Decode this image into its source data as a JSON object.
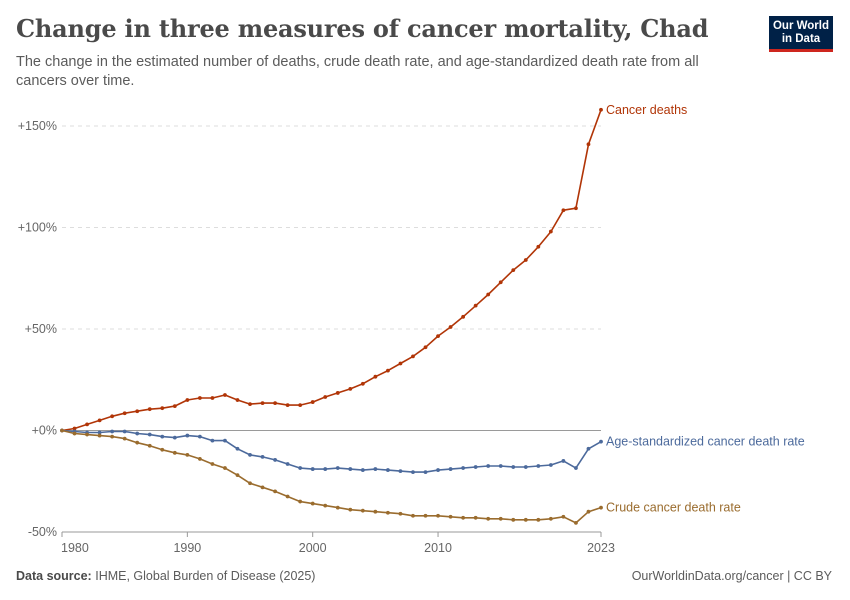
{
  "header": {
    "title": "Change in three measures of cancer mortality, Chad",
    "subtitle": "The change in the estimated number of deaths, crude death rate, and age-standardized death rate from all cancers over time."
  },
  "logo": {
    "line1": "Our World",
    "line2": "in Data"
  },
  "footer": {
    "source_label": "Data source:",
    "source_text": "IHME, Global Burden of Disease (2025)",
    "credit": "OurWorldinData.org/cancer | CC BY"
  },
  "chart_data": {
    "type": "line",
    "x": [
      1980,
      1981,
      1982,
      1983,
      1984,
      1985,
      1986,
      1987,
      1988,
      1989,
      1990,
      1991,
      1992,
      1993,
      1994,
      1995,
      1996,
      1997,
      1998,
      1999,
      2000,
      2001,
      2002,
      2003,
      2004,
      2005,
      2006,
      2007,
      2008,
      2009,
      2010,
      2011,
      2012,
      2013,
      2014,
      2015,
      2016,
      2017,
      2018,
      2019,
      2020,
      2021,
      2022,
      2023
    ],
    "xlim": [
      1980,
      2023
    ],
    "x_ticks": [
      "1980",
      "1990",
      "2000",
      "2010",
      "2023"
    ],
    "x_tick_values": [
      1980,
      1990,
      2000,
      2010,
      2023
    ],
    "ylim": [
      -50,
      150
    ],
    "y_ticks": [
      -50,
      0,
      50,
      100,
      150
    ],
    "y_tick_labels": [
      "-50%",
      "+0%",
      "+50%",
      "+100%",
      "+150%"
    ],
    "grid": "horizontal dashed",
    "series": [
      {
        "name": "Cancer deaths",
        "color": "#b13507",
        "values": [
          0,
          1,
          3,
          5,
          7,
          8.5,
          9.5,
          10.5,
          11,
          12,
          15,
          16,
          16,
          17.5,
          15,
          13,
          13.5,
          13.5,
          12.5,
          12.5,
          14,
          16.5,
          18.5,
          20.5,
          23,
          26.5,
          29.5,
          33,
          36.5,
          41,
          46.5,
          51,
          56,
          61.5,
          67,
          73,
          79,
          84,
          90.5,
          98,
          108.5,
          109.5,
          141,
          158
        ]
      },
      {
        "name": "Age-standardized cancer death rate",
        "color": "#4c6a9c",
        "values": [
          0,
          -0.5,
          -1,
          -1,
          -0.5,
          -0.5,
          -1.5,
          -2,
          -3,
          -3.5,
          -2.5,
          -3,
          -5,
          -5,
          -9,
          -12,
          -13,
          -14.5,
          -16.5,
          -18.5,
          -19,
          -19,
          -18.5,
          -19,
          -19.5,
          -19,
          -19.5,
          -20,
          -20.5,
          -20.5,
          -19.5,
          -19,
          -18.5,
          -18,
          -17.5,
          -17.5,
          -18,
          -18,
          -17.5,
          -17,
          -15,
          -18.5,
          -9,
          -5.5
        ]
      },
      {
        "name": "Crude cancer death rate",
        "color": "#9a6c2e",
        "values": [
          0,
          -1.5,
          -2,
          -2.5,
          -3,
          -4,
          -6,
          -7.5,
          -9.5,
          -11,
          -12,
          -14,
          -16.5,
          -18.5,
          -22,
          -26,
          -28,
          -30,
          -32.5,
          -35,
          -36,
          -37,
          -38,
          -39,
          -39.5,
          -40,
          -40.5,
          -41,
          -42,
          -42,
          -42,
          -42.5,
          -43,
          -43,
          -43.5,
          -43.5,
          -44,
          -44,
          -44,
          -43.5,
          -42.5,
          -45.5,
          -40,
          -38
        ]
      }
    ]
  }
}
